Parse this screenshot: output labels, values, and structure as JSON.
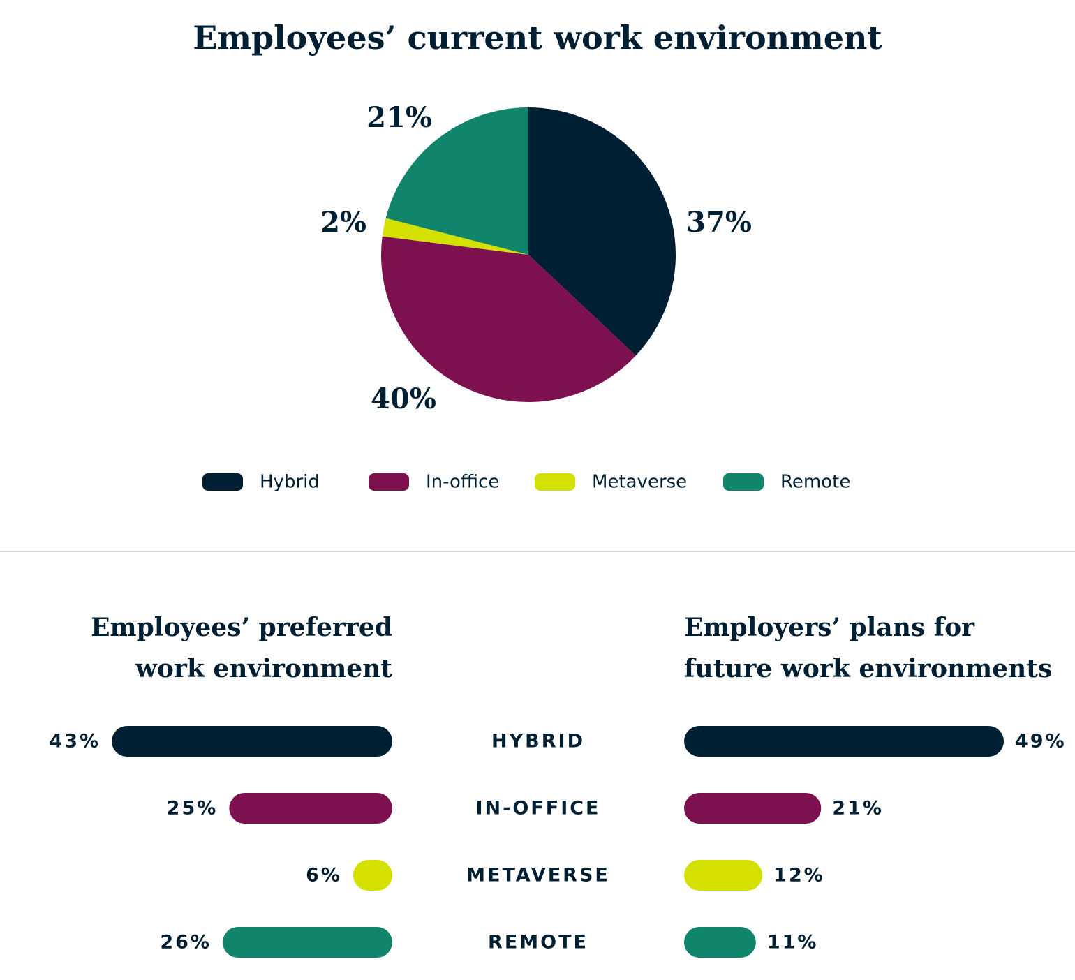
{
  "chart_data": [
    {
      "type": "pie",
      "title": "Employees’ current work environment",
      "categories": [
        "Hybrid",
        "In-office",
        "Metaverse",
        "Remote"
      ],
      "values": [
        37,
        40,
        2,
        21
      ],
      "value_labels": [
        "37%",
        "40%",
        "2%",
        "21%"
      ],
      "colors": [
        "#001f33",
        "#7d1150",
        "#d4e000",
        "#10856b"
      ],
      "legend": "bottom"
    },
    {
      "type": "bar",
      "title": [
        "Employees’ preferred",
        "work environment"
      ],
      "categories": [
        "HYBRID",
        "IN-OFFICE",
        "METAVERSE",
        "REMOTE"
      ],
      "values": [
        43,
        25,
        6,
        26
      ],
      "value_labels": [
        "43%",
        "25%",
        "6%",
        "26%"
      ],
      "colors": [
        "#001f33",
        "#7d1150",
        "#d4e000",
        "#10856b"
      ]
    },
    {
      "type": "bar",
      "title": [
        "Employers’ plans for",
        "future work environments"
      ],
      "values": [
        49,
        21,
        12,
        11
      ],
      "value_labels": [
        "49%",
        "21%",
        "12%",
        "11%"
      ],
      "colors": [
        "#001f33",
        "#7d1150",
        "#d4e000",
        "#10856b"
      ]
    }
  ]
}
